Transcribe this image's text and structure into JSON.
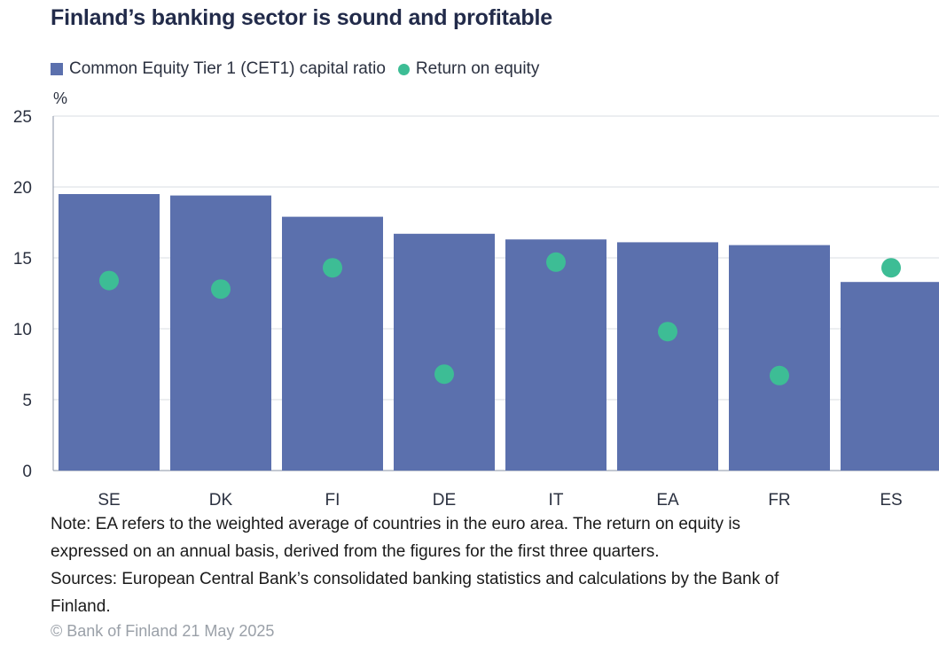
{
  "title": "Finland’s banking sector is sound and profitable",
  "legend": {
    "bar_label": "Common Equity Tier 1 (CET1) capital ratio",
    "dot_label": "Return on equity"
  },
  "unit_label": "%",
  "colors": {
    "bar": "#5b70ad",
    "dot": "#3dbd95",
    "grid": "#d9dce3",
    "axis": "#8a93a6"
  },
  "chart_data": {
    "type": "bar",
    "title": "Finland’s banking sector is sound and profitable",
    "ylabel": "%",
    "xlabel": "",
    "ylim": [
      0,
      25
    ],
    "yticks": [
      0,
      5,
      10,
      15,
      20,
      25
    ],
    "grid": true,
    "legend_position": "top-left",
    "categories": [
      "SE",
      "DK",
      "FI",
      "DE",
      "IT",
      "EA",
      "FR",
      "ES"
    ],
    "series": [
      {
        "name": "Common Equity Tier 1 (CET1) capital ratio",
        "type": "bar",
        "values": [
          19.5,
          19.4,
          17.9,
          16.7,
          16.3,
          16.1,
          15.9,
          13.3
        ]
      },
      {
        "name": "Return on equity",
        "type": "scatter",
        "values": [
          13.4,
          12.8,
          14.3,
          6.8,
          14.7,
          9.8,
          6.7,
          14.3
        ]
      }
    ]
  },
  "note": {
    "line1": "Note: EA refers to the weighted average of countries in the euro area. The return on equity is",
    "line2": "expressed on an annual basis, derived from the figures for the first three quarters.",
    "line3": "Sources: European Central Bank’s consolidated banking statistics and calculations by the Bank of",
    "line4": "Finland."
  },
  "copyright": "© Bank of Finland 21 May 2025"
}
